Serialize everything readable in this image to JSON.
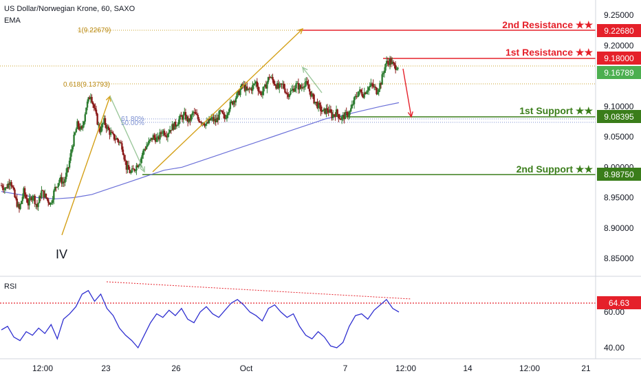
{
  "header": {
    "symbol": "US Dollar/Norwegian Krone, 60, SAXO",
    "indicator": "EMA"
  },
  "rsi_panel": {
    "label": "RSI",
    "level": "64.63"
  },
  "wave_label": "IV",
  "fib_labels": {
    "top": "1(9.22679)",
    "mid": "0.618(9.13793)",
    "half": "50.00%",
    "half_b": "61.80%"
  },
  "levels": [
    {
      "name": "2nd Resistance ★★",
      "value": "9.22680",
      "color": "#e5202a"
    },
    {
      "name": "1st Resistance ★★",
      "value": "9.18000",
      "color": "#e5202a"
    },
    {
      "name": "1st Support ★★",
      "value": "9.08395",
      "color": "#3a7d1a"
    },
    {
      "name": "2nd Support ★★",
      "value": "8.98750",
      "color": "#3a7d1a"
    }
  ],
  "last_price": "9.16789",
  "colors": {
    "up": "#2e7d32",
    "down": "#8b1a1a",
    "ema": "#6a6fd8",
    "arrow": "#d4a017",
    "rsi": "#2f2fd0",
    "rsi_level": "#e5202a",
    "resistance": "#e5202a",
    "support": "#3a7d1a",
    "last_price": "#4caf50",
    "fib": "#c9a227"
  },
  "chart_data": {
    "type": "candlestick",
    "title": "US Dollar/Norwegian Krone, 60, SAXO",
    "x_ticks": [
      "12:00",
      "23",
      "26",
      "Oct",
      "7",
      "12:00",
      "14",
      "12:00",
      "21"
    ],
    "y_ticks": [
      "9.25000",
      "9.20000",
      "9.15000",
      "9.10000",
      "9.05000",
      "9.00000",
      "8.95000",
      "8.90000",
      "8.85000"
    ],
    "ylim": [
      8.82,
      9.26
    ],
    "rsi_ticks": [
      "60.00",
      "40.00"
    ],
    "rsi_ylim": [
      35,
      75
    ],
    "price_path": [
      8.97,
      8.965,
      8.98,
      8.95,
      8.93,
      8.96,
      8.94,
      8.955,
      8.935,
      8.96,
      8.95,
      8.94,
      8.965,
      8.98,
      8.975,
      9.0,
      9.04,
      9.07,
      9.06,
      9.1,
      9.12,
      9.09,
      9.06,
      9.075,
      9.06,
      9.05,
      9.045,
      9.035,
      9.0,
      8.99,
      9.0,
      9.01,
      9.03,
      9.04,
      9.05,
      9.045,
      9.06,
      9.055,
      9.065,
      9.07,
      9.08,
      9.085,
      9.075,
      9.09,
      9.08,
      9.075,
      9.07,
      9.08,
      9.075,
      9.09,
      9.08,
      9.1,
      9.11,
      9.12,
      9.135,
      9.125,
      9.13,
      9.14,
      9.12,
      9.13,
      9.15,
      9.14,
      9.13,
      9.135,
      9.12,
      9.125,
      9.135,
      9.13,
      9.14,
      9.125,
      9.11,
      9.1,
      9.09,
      9.095,
      9.085,
      9.09,
      9.08,
      9.085,
      9.09,
      9.11,
      9.125,
      9.12,
      9.13,
      9.135,
      9.125,
      9.14,
      9.17,
      9.175,
      9.165,
      9.168
    ],
    "ema_path": [
      8.96,
      8.955,
      8.95,
      8.948,
      8.95,
      8.955,
      8.965,
      8.975,
      8.985,
      8.995,
      9.0,
      9.01,
      9.02,
      9.03,
      9.04,
      9.05,
      9.06,
      9.07,
      9.08,
      9.086,
      9.093,
      9.1,
      9.106
    ],
    "rsi_path": [
      50,
      52,
      46,
      44,
      49,
      47,
      51,
      48,
      53,
      45,
      56,
      59,
      63,
      70,
      72,
      66,
      70,
      62,
      58,
      51,
      47,
      44,
      40,
      47,
      54,
      59,
      57,
      61,
      58,
      62,
      56,
      54,
      60,
      63,
      59,
      57,
      61,
      65,
      67,
      64,
      60,
      58,
      55,
      62,
      64,
      60,
      57,
      59,
      52,
      47,
      45,
      49,
      46,
      41,
      40,
      43,
      52,
      58,
      59,
      56,
      61,
      64,
      67,
      62,
      60
    ],
    "levels": [
      9.2268,
      9.18,
      9.08395,
      8.9875
    ],
    "last": 9.16789
  }
}
